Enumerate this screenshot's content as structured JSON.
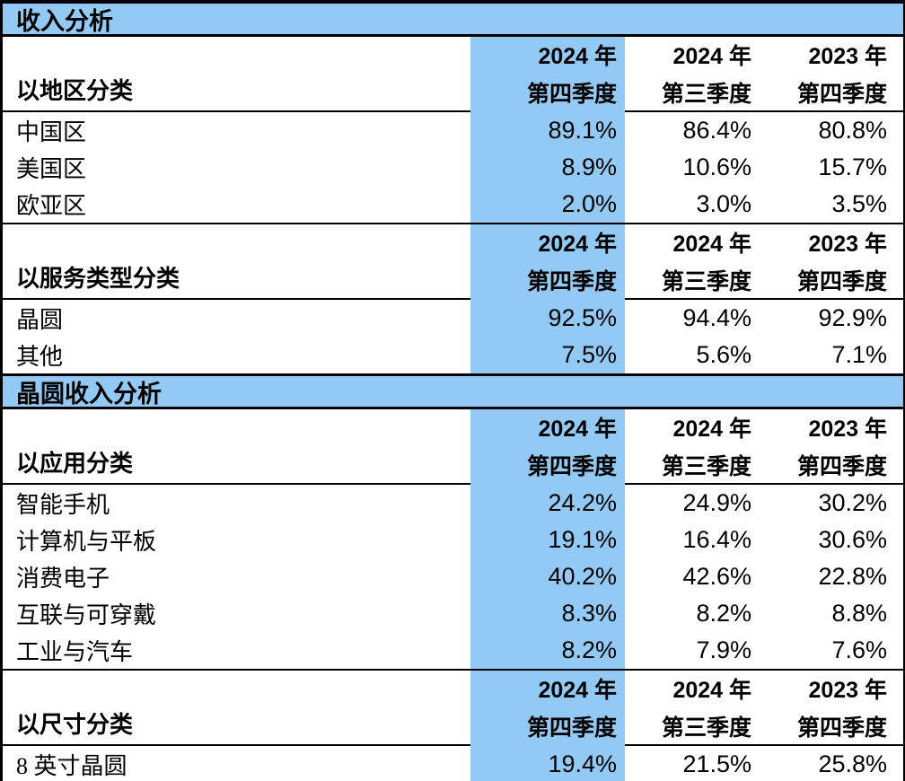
{
  "colors": {
    "highlight_column_blue": "#93CAF5",
    "section_band_blue": "#93CAF5",
    "border_black": "#000000",
    "background_white": "#FFFFFF",
    "text_black": "#000000"
  },
  "table": {
    "sections": [
      {
        "title": "收入分析",
        "groups": [
          {
            "label": "以地区分类",
            "columns": [
              {
                "line1": "2024 年",
                "line2": "第四季度"
              },
              {
                "line1": "2024 年",
                "line2": "第三季度"
              },
              {
                "line1": "2023 年",
                "line2": "第四季度"
              }
            ],
            "rows": [
              {
                "label": "中国区",
                "values": [
                  "89.1%",
                  "86.4%",
                  "80.8%"
                ]
              },
              {
                "label": "美国区",
                "values": [
                  "8.9%",
                  "10.6%",
                  "15.7%"
                ]
              },
              {
                "label": "欧亚区",
                "values": [
                  "2.0%",
                  "3.0%",
                  "3.5%"
                ]
              }
            ]
          },
          {
            "label": "以服务类型分类",
            "columns": [
              {
                "line1": "2024 年",
                "line2": "第四季度"
              },
              {
                "line1": "2024 年",
                "line2": "第三季度"
              },
              {
                "line1": "2023 年",
                "line2": "第四季度"
              }
            ],
            "rows": [
              {
                "label": "晶圆",
                "values": [
                  "92.5%",
                  "94.4%",
                  "92.9%"
                ]
              },
              {
                "label": "其他",
                "values": [
                  "7.5%",
                  "5.6%",
                  "7.1%"
                ]
              }
            ]
          }
        ]
      },
      {
        "title": "晶圆收入分析",
        "groups": [
          {
            "label": "以应用分类",
            "columns": [
              {
                "line1": "2024 年",
                "line2": "第四季度"
              },
              {
                "line1": "2024 年",
                "line2": "第三季度"
              },
              {
                "line1": "2023 年",
                "line2": "第四季度"
              }
            ],
            "rows": [
              {
                "label": "智能手机",
                "values": [
                  "24.2%",
                  "24.9%",
                  "30.2%"
                ]
              },
              {
                "label": "计算机与平板",
                "values": [
                  "19.1%",
                  "16.4%",
                  "30.6%"
                ]
              },
              {
                "label": "消费电子",
                "values": [
                  "40.2%",
                  "42.6%",
                  "22.8%"
                ]
              },
              {
                "label": "互联与可穿戴",
                "values": [
                  "8.3%",
                  "8.2%",
                  "8.8%"
                ]
              },
              {
                "label": "工业与汽车",
                "values": [
                  "8.2%",
                  "7.9%",
                  "7.6%"
                ]
              }
            ]
          },
          {
            "label": "以尺寸分类",
            "columns": [
              {
                "line1": "2024 年",
                "line2": "第四季度"
              },
              {
                "line1": "2024 年",
                "line2": "第三季度"
              },
              {
                "line1": "2023 年",
                "line2": "第四季度"
              }
            ],
            "rows": [
              {
                "label": "8 英寸晶圆",
                "values": [
                  "19.4%",
                  "21.5%",
                  "25.8%"
                ]
              }
            ]
          }
        ]
      }
    ]
  }
}
